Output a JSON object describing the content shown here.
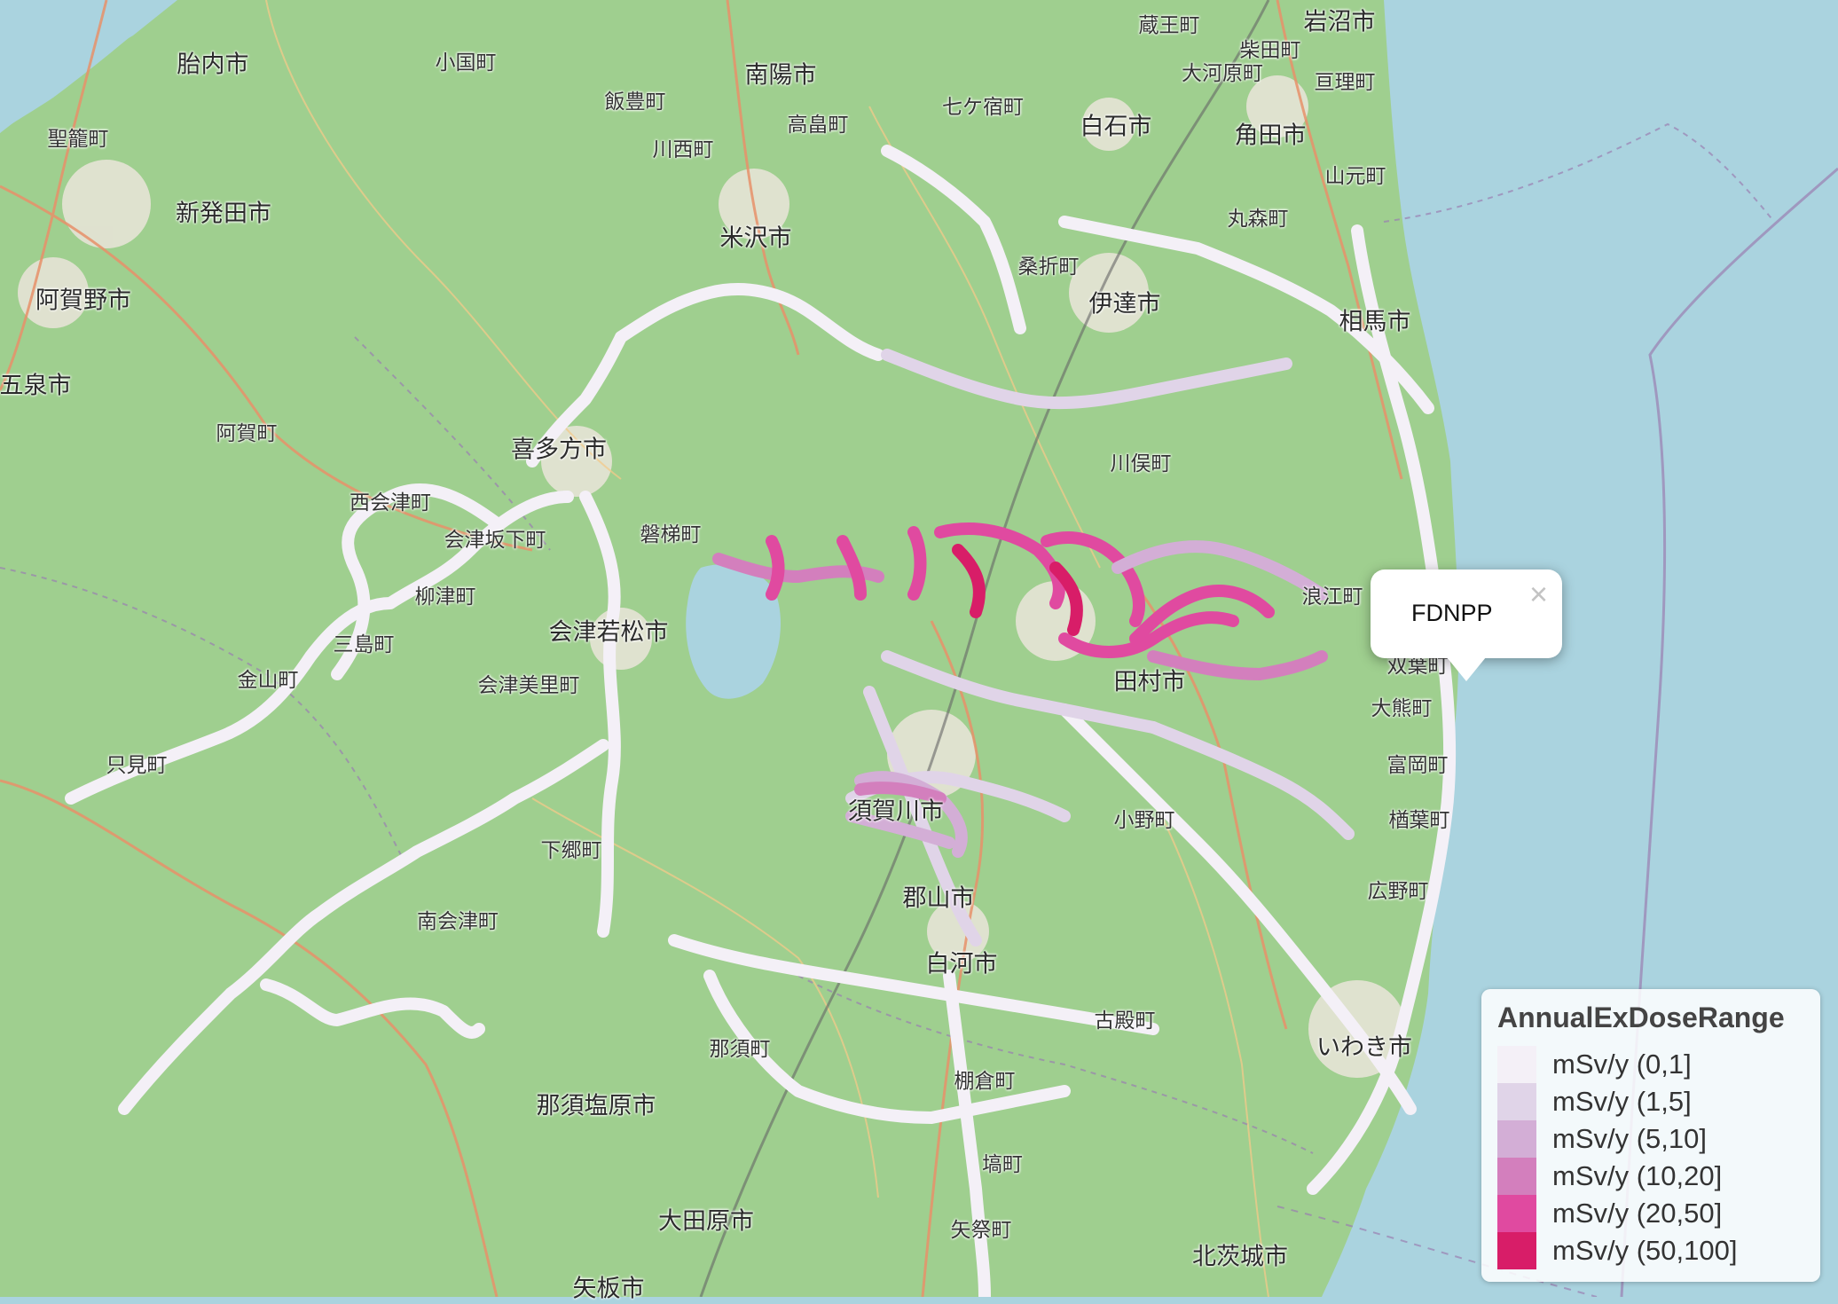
{
  "map": {
    "places": [
      {
        "id": "tainai",
        "label": "胎内市"
      },
      {
        "id": "oguni",
        "label": "小国町"
      },
      {
        "id": "nanyo",
        "label": "南陽市"
      },
      {
        "id": "zao",
        "label": "蔵王町"
      },
      {
        "id": "iwanuma",
        "label": "岩沼市"
      },
      {
        "id": "shibata-town",
        "label": "柴田町"
      },
      {
        "id": "ogawara",
        "label": "大河原町"
      },
      {
        "id": "watari",
        "label": "亘理町"
      },
      {
        "id": "seiro",
        "label": "聖籠町"
      },
      {
        "id": "iide",
        "label": "飯豊町"
      },
      {
        "id": "takahata",
        "label": "高畠町"
      },
      {
        "id": "shichikashuku",
        "label": "七ケ宿町"
      },
      {
        "id": "shiroishi",
        "label": "白石市"
      },
      {
        "id": "kakuda",
        "label": "角田市"
      },
      {
        "id": "kawanishi",
        "label": "川西町"
      },
      {
        "id": "yamamoto",
        "label": "山元町"
      },
      {
        "id": "shibata-city",
        "label": "新発田市"
      },
      {
        "id": "marumori",
        "label": "丸森町"
      },
      {
        "id": "yonezawa",
        "label": "米沢市"
      },
      {
        "id": "kuwaori",
        "label": "桑折町"
      },
      {
        "id": "agano",
        "label": "阿賀野市"
      },
      {
        "id": "date",
        "label": "伊達市"
      },
      {
        "id": "soma",
        "label": "相馬市"
      },
      {
        "id": "gosen",
        "label": "五泉市"
      },
      {
        "id": "aga",
        "label": "阿賀町"
      },
      {
        "id": "kitakata",
        "label": "喜多方市"
      },
      {
        "id": "kawamata",
        "label": "川俣町"
      },
      {
        "id": "nishiaizu",
        "label": "西会津町"
      },
      {
        "id": "bandai",
        "label": "磐梯町"
      },
      {
        "id": "aizubange",
        "label": "会津坂下町"
      },
      {
        "id": "yanaizu",
        "label": "柳津町"
      },
      {
        "id": "aizuwakamatsu",
        "label": "会津若松市"
      },
      {
        "id": "namie",
        "label": "浪江町"
      },
      {
        "id": "mishima",
        "label": "三島町"
      },
      {
        "id": "futaba",
        "label": "双葉町"
      },
      {
        "id": "kaneyama",
        "label": "金山町"
      },
      {
        "id": "aizumisato",
        "label": "会津美里町"
      },
      {
        "id": "okuma",
        "label": "大熊町"
      },
      {
        "id": "tamura",
        "label": "田村市"
      },
      {
        "id": "tomioka",
        "label": "富岡町"
      },
      {
        "id": "tadami",
        "label": "只見町"
      },
      {
        "id": "sukagawa",
        "label": "須賀川市"
      },
      {
        "id": "ono",
        "label": "小野町"
      },
      {
        "id": "naraha",
        "label": "楢葉町"
      },
      {
        "id": "shimogo",
        "label": "下郷町"
      },
      {
        "id": "hirono",
        "label": "広野町"
      },
      {
        "id": "minamiaizu",
        "label": "南会津町"
      },
      {
        "id": "shirakawa",
        "label": "白河市"
      },
      {
        "id": "furudono",
        "label": "古殿町"
      },
      {
        "id": "nasu",
        "label": "那須町"
      },
      {
        "id": "tanagura",
        "label": "棚倉町"
      },
      {
        "id": "nasushiobara",
        "label": "那須塩原市"
      },
      {
        "id": "hanawa",
        "label": "塙町"
      },
      {
        "id": "otawara",
        "label": "大田原市"
      },
      {
        "id": "yamatsuri",
        "label": "矢祭町"
      },
      {
        "id": "kitaibaraki",
        "label": "北茨城市"
      },
      {
        "id": "yaita",
        "label": "矢板市"
      },
      {
        "id": "iwaki",
        "label": "いわき市"
      },
      {
        "id": "koriyama",
        "label": "郡山市"
      }
    ]
  },
  "popup": {
    "label": "FDNPP",
    "close_label": "×"
  },
  "legend": {
    "title": "AnnualExDoseRange",
    "items": [
      {
        "label": "mSv/y (0,1]",
        "color": "#f4f0f7"
      },
      {
        "label": "mSv/y (1,5]",
        "color": "#e0d4e8"
      },
      {
        "label": "mSv/y (5,10]",
        "color": "#d3aed6"
      },
      {
        "label": "mSv/y (10,20]",
        "color": "#d37fbd"
      },
      {
        "label": "mSv/y (20,50]",
        "color": "#e04aa0"
      },
      {
        "label": "mSv/y (50,100]",
        "color": "#d81d68"
      }
    ]
  },
  "colors": {
    "sea": "#aad3df",
    "land": "#9fcf8f",
    "road_main": "#e8906a",
    "road_minor": "#f3c98a",
    "boundary": "#9a7fb0"
  }
}
